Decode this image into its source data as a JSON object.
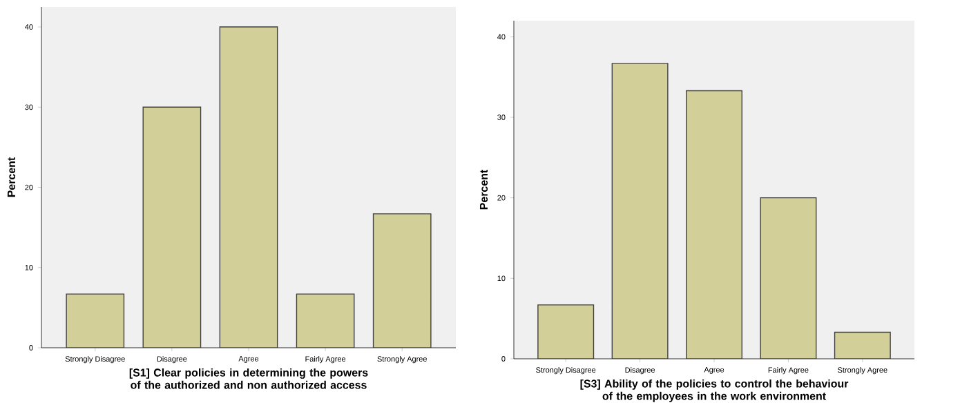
{
  "chart_data": [
    {
      "type": "bar",
      "categories": [
        "Strongly Disagree",
        "Disagree",
        "Agree",
        "Fairly Agree",
        "Strongly Agree"
      ],
      "values": [
        6.7,
        30,
        40,
        6.7,
        16.7
      ],
      "color": "#d3cf98",
      "ylabel": "Percent",
      "xlabel": "[S1] Clear policies in determining the powers of the authorized and non authorized access",
      "ylim": [
        0,
        42.5
      ],
      "yticks": [
        0,
        10,
        20,
        30,
        40
      ],
      "grid": false
    },
    {
      "type": "bar",
      "categories": [
        "Strongly Disagree",
        "Disagree",
        "Agree",
        "Fairly Agree",
        "Strongly Agree"
      ],
      "values": [
        6.7,
        36.7,
        33.3,
        20,
        3.3
      ],
      "color": "#d3cf98",
      "ylabel": "Percent",
      "xlabel": "[S3] Ability of the policies to control the behaviour of the employees in the work environment",
      "ylim": [
        0,
        42
      ],
      "yticks": [
        0,
        10,
        20,
        30,
        40
      ],
      "grid": false
    }
  ]
}
